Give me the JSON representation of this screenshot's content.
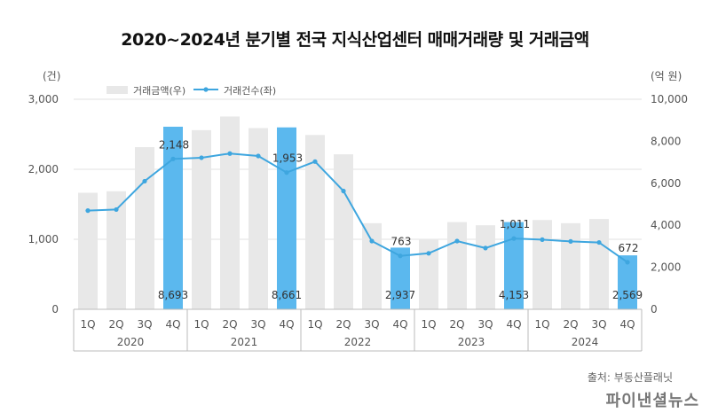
{
  "chart_data": {
    "type": "bar",
    "title": "2020~2024년 분기별 전국 지식산업센터 매매거래량 및 거래금액",
    "left_unit": "(건)",
    "right_unit": "(억 원)",
    "left_ylim": [
      0,
      3000
    ],
    "right_ylim": [
      0,
      10000
    ],
    "left_ticks": [
      "0",
      "1,000",
      "2,000",
      "3,000"
    ],
    "right_ticks": [
      "0",
      "2,000",
      "4,000",
      "6,000",
      "8,000",
      "10,000"
    ],
    "categories": [
      "1Q",
      "2Q",
      "3Q",
      "4Q",
      "1Q",
      "2Q",
      "3Q",
      "4Q",
      "1Q",
      "2Q",
      "3Q",
      "4Q",
      "1Q",
      "2Q",
      "3Q",
      "4Q",
      "1Q",
      "2Q",
      "3Q",
      "4Q"
    ],
    "years": [
      "2020",
      "2021",
      "2022",
      "2023",
      "2024"
    ],
    "series": [
      {
        "name": "거래금액(우)",
        "axis": "right",
        "kind": "bar",
        "values": [
          5550,
          5620,
          7720,
          8693,
          8530,
          9180,
          8630,
          8661,
          8300,
          7380,
          4100,
          2937,
          3350,
          4150,
          4000,
          4153,
          4250,
          4100,
          4300,
          2569
        ]
      },
      {
        "name": "거래건수(좌)",
        "axis": "left",
        "kind": "line",
        "values": [
          1410,
          1425,
          1830,
          2148,
          2165,
          2225,
          2190,
          1953,
          2110,
          1690,
          975,
          763,
          800,
          975,
          875,
          1011,
          995,
          970,
          955,
          672
        ]
      }
    ],
    "highlight_indices": [
      3,
      7,
      11,
      15,
      19
    ],
    "bar_labels": [
      {
        "index": 3,
        "text": "8,693"
      },
      {
        "index": 7,
        "text": "8,661"
      },
      {
        "index": 11,
        "text": "2,937"
      },
      {
        "index": 15,
        "text": "4,153"
      },
      {
        "index": 19,
        "text": "2,569"
      }
    ],
    "line_labels": [
      {
        "index": 3,
        "text": "2,148"
      },
      {
        "index": 7,
        "text": "1,953"
      },
      {
        "index": 11,
        "text": "763"
      },
      {
        "index": 15,
        "text": "1,011"
      },
      {
        "index": 19,
        "text": "672"
      }
    ],
    "colors": {
      "bar": "#e8e8e8",
      "bar_highlight": "#5bb8ee",
      "line": "#3ea6df",
      "grid": "#e0e0e0",
      "axis": "#bbbbbb"
    }
  },
  "source": "출처: 부동산플래닛",
  "logo": "파이낸셜뉴스"
}
